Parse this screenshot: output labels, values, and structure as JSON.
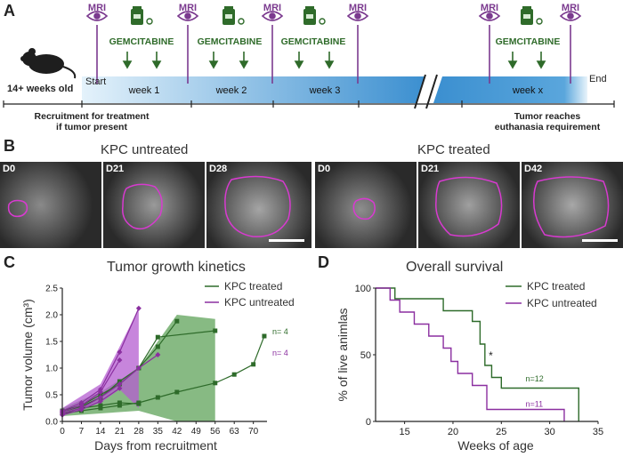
{
  "panel_a": {
    "letter": "A",
    "mri_label": "MRI",
    "drug_label": "GEMCITABINE",
    "age_label": "14+ weeks old",
    "start_label": "Start",
    "end_label": "End",
    "weeks": [
      "week 1",
      "week 2",
      "week 3",
      "week x"
    ],
    "recruit_line1": "Recruitment for treatment",
    "recruit_line2": "if tumor present",
    "tumor_line1": "Tumor reaches",
    "tumor_line2": "euthanasia requirement"
  },
  "panel_b": {
    "letter": "B",
    "untreated_title": "KPC untreated",
    "treated_title": "KPC treated",
    "untreated_days": [
      "D0",
      "D21",
      "D28"
    ],
    "treated_days": [
      "D0",
      "D21",
      "D42"
    ]
  },
  "panel_c": {
    "letter": "C",
    "title": "Tumor growth kinetics",
    "xlabel": "Days from recruitment",
    "ylabel": "Tumor volume (cm³)",
    "legend_treated": "KPC treated",
    "legend_untreated": "KPC untreated",
    "n_treated": "n= 4",
    "n_untreated": "n= 4"
  },
  "panel_d": {
    "letter": "D",
    "title": "Overall survival",
    "xlabel": "Weeks of age",
    "ylabel": "% of live animlas",
    "legend_treated": "KPC treated",
    "legend_untreated": "KPC untreated",
    "n_treated": "n=12",
    "n_untreated": "n=11",
    "sig": "*"
  },
  "colors": {
    "treated": "#2e6b2a",
    "untreated": "#8b2fa0",
    "treated_fill": "#5fa35a",
    "untreated_fill": "#b45cd0",
    "mri": "#7b3a8f"
  },
  "chart_data": [
    {
      "type": "line",
      "title": "Tumor growth kinetics",
      "xlabel": "Days from recruitment",
      "ylabel": "Tumor volume (cm³)",
      "xticks": [
        0,
        7,
        14,
        21,
        28,
        35,
        42,
        49,
        56,
        63,
        70
      ],
      "yticks": [
        0.0,
        0.5,
        1.0,
        1.5,
        2.0,
        2.5
      ],
      "xlim": [
        0,
        75
      ],
      "ylim": [
        0,
        2.5
      ],
      "series": [
        {
          "name": "KPC treated",
          "group": "treated",
          "x": [
            0,
            7,
            14,
            21,
            28,
            35,
            42,
            56,
            63,
            70,
            74
          ],
          "y": [
            0.15,
            0.2,
            0.25,
            0.3,
            0.35,
            0.45,
            0.55,
            0.72,
            0.88,
            1.07,
            1.6
          ]
        },
        {
          "name": "KPC treated",
          "group": "treated",
          "x": [
            0,
            7,
            14,
            21,
            28,
            35,
            42
          ],
          "y": [
            0.2,
            0.3,
            0.5,
            0.7,
            1.0,
            1.4,
            1.88
          ]
        },
        {
          "name": "KPC treated",
          "group": "treated",
          "x": [
            0,
            7,
            14,
            21,
            28,
            35,
            56
          ],
          "y": [
            0.18,
            0.28,
            0.45,
            0.75,
            1.0,
            1.58,
            1.7
          ]
        },
        {
          "name": "KPC treated",
          "group": "treated",
          "x": [
            0,
            7,
            14,
            21,
            28
          ],
          "y": [
            0.15,
            0.25,
            0.3,
            0.35,
            0.33
          ]
        },
        {
          "name": "KPC untreated",
          "group": "untreated",
          "x": [
            0,
            7,
            14,
            21,
            28
          ],
          "y": [
            0.2,
            0.35,
            0.6,
            1.3,
            2.12
          ]
        },
        {
          "name": "KPC untreated",
          "group": "untreated",
          "x": [
            0,
            7,
            14,
            21
          ],
          "y": [
            0.18,
            0.3,
            0.55,
            1.15
          ]
        },
        {
          "name": "KPC untreated",
          "group": "untreated",
          "x": [
            0,
            7,
            14,
            21,
            28,
            35
          ],
          "y": [
            0.15,
            0.25,
            0.45,
            0.7,
            1.0,
            1.25
          ]
        },
        {
          "name": "KPC untreated",
          "group": "untreated",
          "x": [
            0,
            7,
            14,
            21
          ],
          "y": [
            0.12,
            0.22,
            0.38,
            0.62
          ]
        }
      ],
      "band_treated": {
        "x": [
          0,
          14,
          28,
          42,
          56
        ],
        "lo": [
          0.1,
          0.15,
          0.2,
          0.0,
          0.0
        ],
        "hi": [
          0.25,
          0.55,
          1.0,
          2.0,
          1.92
        ]
      },
      "band_untreated": {
        "x": [
          0,
          14,
          21,
          28
        ],
        "lo": [
          0.1,
          0.35,
          0.6,
          0.25
        ],
        "hi": [
          0.25,
          0.7,
          1.4,
          2.12
        ]
      }
    },
    {
      "type": "line",
      "title": "Overall survival",
      "xlabel": "Weeks of age",
      "ylabel": "% of live animlas",
      "xticks": [
        15,
        20,
        25,
        30,
        35
      ],
      "yticks": [
        0,
        50,
        100
      ],
      "xlim": [
        12,
        35
      ],
      "ylim": [
        0,
        100
      ],
      "series": [
        {
          "name": "KPC treated",
          "x": [
            12,
            14,
            14,
            19,
            19,
            22,
            22,
            22.8,
            22.8,
            23.3,
            23.3,
            24,
            24,
            25,
            25,
            33,
            33
          ],
          "y": [
            100,
            100,
            92,
            92,
            83,
            83,
            75,
            75,
            58,
            58,
            42,
            42,
            33,
            33,
            25,
            25,
            0
          ]
        },
        {
          "name": "KPC untreated",
          "x": [
            12,
            13.5,
            13.5,
            14.5,
            14.5,
            16,
            16,
            17.5,
            17.5,
            19,
            19,
            19.8,
            19.8,
            20.5,
            20.5,
            22,
            22,
            23.5,
            23.5,
            31.5,
            31.5
          ],
          "y": [
            100,
            100,
            91,
            91,
            82,
            82,
            73,
            73,
            64,
            64,
            55,
            55,
            45,
            45,
            36,
            36,
            27,
            27,
            9,
            9,
            0
          ]
        }
      ]
    }
  ]
}
